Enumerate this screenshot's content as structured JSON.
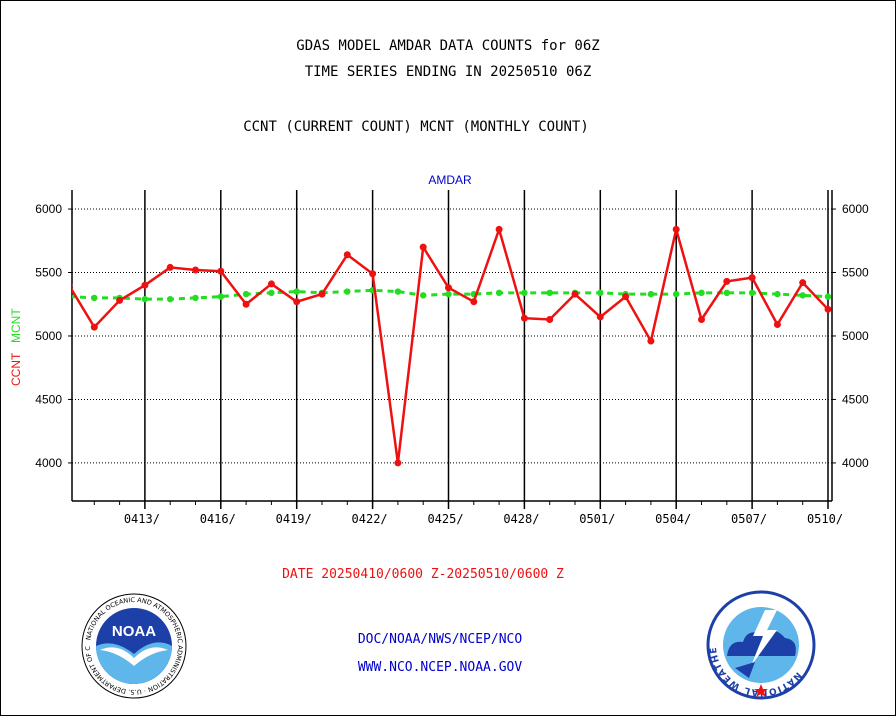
{
  "header": {
    "title_line1": "GDAS MODEL AMDAR DATA COUNTS for 06Z",
    "title_line2": "TIME SERIES ENDING IN 20250510 06Z",
    "subtitle": "CCNT (CURRENT COUNT) MCNT (MONTHLY COUNT)"
  },
  "footer": {
    "org_path": "DOC/NOAA/NWS/NCEP/NCO",
    "website": "WWW.NCO.NCEP.NOAA.GOV"
  },
  "logos": {
    "noaa_text": "NOAA",
    "noaa_ring": "NATIONAL OCEANIC AND ATMOSPHERIC ADMINISTRATION · U.S. DEPARTMENT OF COMMERCE",
    "nws_ring": "NATIONAL WEATHER SERVICE"
  },
  "colors": {
    "ccnt": "#ee1111",
    "mcnt": "#22dd22",
    "label_blue": "#0000cc"
  },
  "chart_data": {
    "type": "line",
    "title": "AMDAR",
    "ylabel_ccnt": "CCNT",
    "ylabel_mcnt": "MCNT",
    "xlabel": "DATE 20250410/0600 Z-20250510/0600 Z",
    "ylim": [
      3700,
      6150
    ],
    "yticks": [
      4000,
      4500,
      5000,
      5500,
      6000
    ],
    "x_dates": [
      "0410",
      "0411",
      "0412",
      "0413",
      "0414",
      "0415",
      "0416",
      "0417",
      "0418",
      "0419",
      "0420",
      "0421",
      "0422",
      "0423",
      "0424",
      "0425",
      "0426",
      "0427",
      "0428",
      "0429",
      "0430",
      "0501",
      "0502",
      "0503",
      "0504",
      "0505",
      "0506",
      "0507",
      "0508",
      "0509",
      "0510"
    ],
    "x_tick_labels": [
      "0413/",
      "0416/",
      "0419/",
      "0422/",
      "0425/",
      "0428/",
      "0501/",
      "0504/",
      "0507/",
      "0510/"
    ],
    "grid": true,
    "series": [
      {
        "name": "CCNT",
        "values": [
          5400,
          5070,
          5280,
          5400,
          5540,
          5520,
          5510,
          5250,
          5410,
          5270,
          5330,
          5640,
          5490,
          4000,
          5700,
          5380,
          5270,
          5840,
          5140,
          5130,
          5330,
          5150,
          5310,
          4960,
          5840,
          5130,
          5430,
          5460,
          5090,
          5420,
          5210
        ]
      },
      {
        "name": "MCNT",
        "values": [
          5310,
          5300,
          5300,
          5290,
          5290,
          5300,
          5310,
          5330,
          5340,
          5350,
          5340,
          5350,
          5360,
          5350,
          5320,
          5330,
          5330,
          5340,
          5340,
          5340,
          5340,
          5340,
          5330,
          5330,
          5330,
          5340,
          5340,
          5340,
          5330,
          5320,
          5310
        ]
      }
    ]
  }
}
